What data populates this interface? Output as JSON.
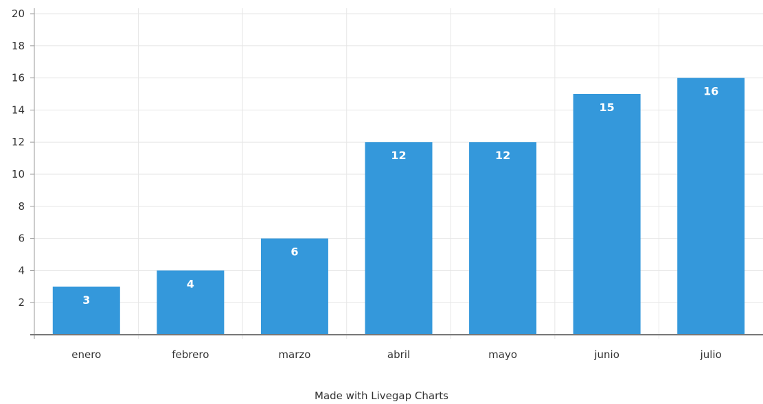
{
  "chart_data": {
    "type": "bar",
    "categories": [
      "enero",
      "febrero",
      "marzo",
      "abril",
      "mayo",
      "junio",
      "julio"
    ],
    "values": [
      3,
      4,
      6,
      12,
      12,
      15,
      16
    ],
    "ylim": [
      0,
      20
    ],
    "yticks": [
      2,
      4,
      6,
      8,
      10,
      12,
      14,
      16,
      18,
      20
    ],
    "grid": true,
    "data_labels": true,
    "bar_color": "#3498db"
  },
  "footer": {
    "credit": "Made with Livegap Charts"
  }
}
